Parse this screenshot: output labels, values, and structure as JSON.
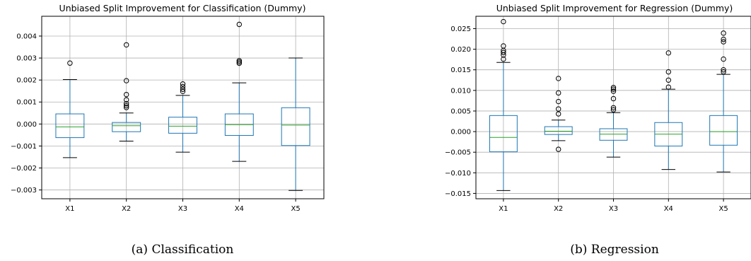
{
  "chart_data": [
    {
      "type": "box",
      "title": "Unbiased Split Improvement for Classification (Dummy)",
      "caption": "(a) Classification",
      "xlabel": "",
      "ylabel": "",
      "grid": true,
      "ylim": [
        -0.0034,
        0.0049
      ],
      "yticks": [
        -0.003,
        -0.002,
        -0.001,
        0.0,
        0.001,
        0.002,
        0.003,
        0.004
      ],
      "ytick_labels": [
        "−0.003",
        "−0.002",
        "−0.001",
        "0.000",
        "0.001",
        "0.002",
        "0.003",
        "0.004"
      ],
      "categories": [
        "X1",
        "X2",
        "X3",
        "X4",
        "X5"
      ],
      "boxes": [
        {
          "whisker_low": -0.00153,
          "q1": -0.00062,
          "median": -0.00013,
          "q3": 0.00046,
          "whisker_high": 0.00202,
          "outliers": [
            0.00277
          ]
        },
        {
          "whisker_low": -0.00078,
          "q1": -0.00035,
          "median": -8e-05,
          "q3": 7e-05,
          "whisker_high": 0.0005,
          "outliers": [
            0.00075,
            0.00083,
            0.00092,
            0.0011,
            0.00134,
            0.00197,
            0.0036
          ]
        },
        {
          "whisker_low": -0.00128,
          "q1": -0.00042,
          "median": -0.0001,
          "q3": 0.00031,
          "whisker_high": 0.0013,
          "outliers": [
            0.00148,
            0.00158,
            0.0017,
            0.00182
          ]
        },
        {
          "whisker_low": -0.0017,
          "q1": -0.00052,
          "median": -3e-05,
          "q3": 0.00046,
          "whisker_high": 0.00187,
          "outliers": [
            0.00276,
            0.00282,
            0.00288,
            0.00453
          ]
        },
        {
          "whisker_low": -0.00302,
          "q1": -0.00098,
          "median": -5e-05,
          "q3": 0.00074,
          "whisker_high": 0.003,
          "outliers": []
        }
      ]
    },
    {
      "type": "box",
      "title": "Unbiased Split Improvement for Regression (Dummy)",
      "caption": "(b) Regression",
      "xlabel": "",
      "ylabel": "",
      "grid": true,
      "ylim": [
        -0.0163,
        0.028
      ],
      "yticks": [
        -0.015,
        -0.01,
        -0.005,
        0.0,
        0.005,
        0.01,
        0.015,
        0.02,
        0.025
      ],
      "ytick_labels": [
        "−0.015",
        "−0.010",
        "−0.005",
        "0.000",
        "0.005",
        "0.010",
        "0.015",
        "0.020",
        "0.025"
      ],
      "categories": [
        "X1",
        "X2",
        "X3",
        "X4",
        "X5"
      ],
      "boxes": [
        {
          "whisker_low": -0.0143,
          "q1": -0.0049,
          "median": -0.0014,
          "q3": 0.0039,
          "whisker_high": 0.0168,
          "outliers": [
            0.0176,
            0.0186,
            0.0192,
            0.0197,
            0.0208,
            0.0267
          ]
        },
        {
          "whisker_low": -0.0022,
          "q1": -0.0007,
          "median": 0.0001,
          "q3": 0.0012,
          "whisker_high": 0.0028,
          "outliers": [
            -0.0043,
            0.0043,
            0.0055,
            0.0073,
            0.0094,
            0.0129
          ]
        },
        {
          "whisker_low": -0.0062,
          "q1": -0.0021,
          "median": -0.0006,
          "q3": 0.0007,
          "whisker_high": 0.0046,
          "outliers": [
            0.0053,
            0.0058,
            0.008,
            0.0098,
            0.0103,
            0.0107
          ]
        },
        {
          "whisker_low": -0.0092,
          "q1": -0.0035,
          "median": -0.0006,
          "q3": 0.0022,
          "whisker_high": 0.0103,
          "outliers": [
            0.0108,
            0.0125,
            0.0145,
            0.0191
          ]
        },
        {
          "whisker_low": -0.0098,
          "q1": -0.0033,
          "median": 0.0,
          "q3": 0.0039,
          "whisker_high": 0.0139,
          "outliers": [
            0.0145,
            0.015,
            0.0176,
            0.0218,
            0.0224,
            0.0239
          ]
        }
      ]
    }
  ],
  "colors": {
    "box": "#1f77b4",
    "median": "#2ca02c",
    "grid": "#b0b0b0",
    "flier": "#000000",
    "axes": "#000000"
  }
}
